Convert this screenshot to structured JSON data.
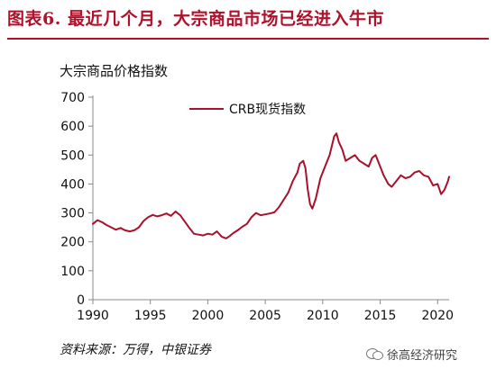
{
  "header": {
    "title": "图表6.  最近几个月，大宗商品市场已经进入牛市"
  },
  "footer": {
    "source": "资料来源：万得，中银证券",
    "watermark": "徐高经济研究",
    "watermark_icon": "wechat-icon"
  },
  "colors": {
    "title": "#b0112b",
    "series": "#a8102b",
    "axis": "#888888"
  },
  "chart_data": {
    "type": "line",
    "title": "",
    "xlabel": "",
    "ylabel": "大宗商品价格指数",
    "xlim": [
      1990,
      2021
    ],
    "ylim": [
      0,
      700
    ],
    "x_ticks": [
      1990,
      1995,
      2000,
      2005,
      2010,
      2015,
      2020
    ],
    "y_ticks": [
      0,
      100,
      200,
      300,
      400,
      500,
      600,
      700
    ],
    "grid": false,
    "legend": {
      "entries": [
        "CRB现货指数"
      ],
      "position": "top-center"
    },
    "series": [
      {
        "name": "CRB现货指数",
        "x": [
          1990.0,
          1990.4,
          1990.8,
          1991.2,
          1991.6,
          1992.0,
          1992.4,
          1992.8,
          1993.2,
          1993.6,
          1994.0,
          1994.4,
          1994.8,
          1995.2,
          1995.6,
          1996.0,
          1996.4,
          1996.8,
          1997.2,
          1997.6,
          1998.0,
          1998.4,
          1998.8,
          1999.2,
          1999.6,
          2000.0,
          2000.4,
          2000.8,
          2001.2,
          2001.6,
          2001.9,
          2002.2,
          2002.6,
          2003.0,
          2003.4,
          2003.8,
          2004.2,
          2004.6,
          2005.0,
          2005.4,
          2005.8,
          2006.2,
          2006.6,
          2007.0,
          2007.4,
          2007.8,
          2008.0,
          2008.3,
          2008.5,
          2008.7,
          2008.9,
          2009.1,
          2009.4,
          2009.8,
          2010.2,
          2010.6,
          2011.0,
          2011.2,
          2011.4,
          2011.7,
          2012.0,
          2012.4,
          2012.8,
          2013.2,
          2013.6,
          2014.0,
          2014.3,
          2014.6,
          2014.9,
          2015.3,
          2015.7,
          2016.0,
          2016.4,
          2016.8,
          2017.2,
          2017.6,
          2018.0,
          2018.4,
          2018.8,
          2019.2,
          2019.6,
          2020.0,
          2020.3,
          2020.6,
          2020.9,
          2021.0
        ],
        "y": [
          262,
          275,
          268,
          258,
          250,
          242,
          248,
          240,
          236,
          240,
          250,
          272,
          285,
          293,
          288,
          292,
          298,
          290,
          305,
          292,
          270,
          248,
          228,
          225,
          222,
          228,
          225,
          236,
          218,
          212,
          220,
          230,
          240,
          252,
          262,
          285,
          300,
          292,
          295,
          298,
          302,
          320,
          345,
          370,
          410,
          440,
          470,
          480,
          455,
          380,
          330,
          315,
          350,
          420,
          460,
          500,
          565,
          575,
          545,
          520,
          480,
          490,
          500,
          480,
          470,
          460,
          490,
          500,
          470,
          430,
          400,
          390,
          410,
          430,
          420,
          425,
          440,
          445,
          430,
          425,
          395,
          400,
          365,
          380,
          410,
          425
        ]
      }
    ]
  }
}
